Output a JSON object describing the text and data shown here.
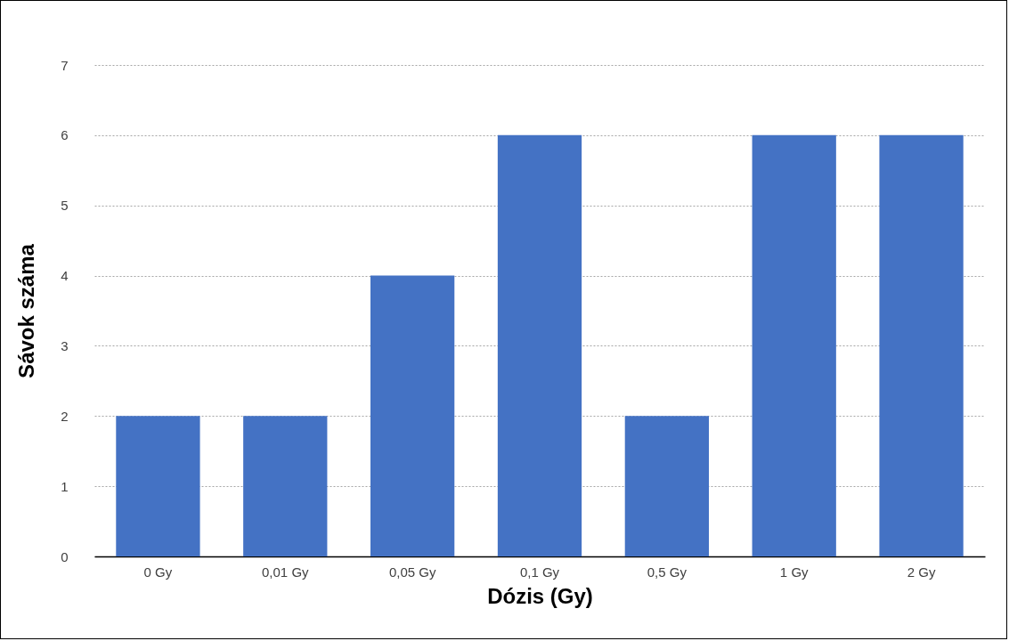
{
  "chart_data": {
    "type": "bar",
    "xlabel": "Dózis (Gy)",
    "ylabel": "Sávok száma",
    "categories": [
      "0 Gy",
      "0,01 Gy",
      "0,05 Gy",
      "0,1 Gy",
      "0,5 Gy",
      "1 Gy",
      "2 Gy"
    ],
    "values": [
      2,
      2,
      4,
      6,
      2,
      6,
      6
    ],
    "color": "#4472c4",
    "ylim": [
      0,
      7
    ],
    "yticks": [
      0,
      1,
      2,
      3,
      4,
      5,
      6,
      7
    ],
    "grid": "y"
  }
}
